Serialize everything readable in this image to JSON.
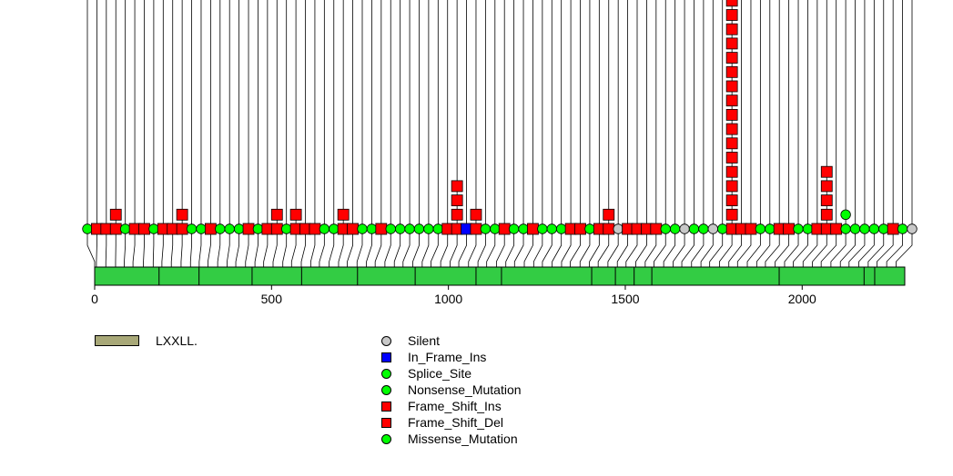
{
  "chart_data": {
    "type": "lollipop",
    "title": "",
    "xlabel": "",
    "ylabel": "",
    "protein_length": 2290,
    "xlim": [
      0,
      2290
    ],
    "axis_ticks": [
      0,
      500,
      1000,
      1500,
      2000
    ],
    "axis_tick_labels": [
      "0",
      "500",
      "1000",
      "1500",
      "2000"
    ],
    "domains": [
      {
        "name": "LXXLL.",
        "color": "#a8a878",
        "motif_positions": [
          182,
          295,
          445,
          585,
          743,
          906,
          1078,
          1150,
          1405,
          1472,
          1525,
          1575,
          1935,
          2175,
          2205
        ]
      }
    ],
    "mutation_types": [
      {
        "name": "Silent",
        "color": "#c8c8c8",
        "shape": "circle"
      },
      {
        "name": "In_Frame_Ins",
        "color": "#0000ff",
        "shape": "square"
      },
      {
        "name": "Splice_Site",
        "color": "#00ff00",
        "shape": "circle"
      },
      {
        "name": "Nonsense_Mutation",
        "color": "#00ff00",
        "shape": "circle"
      },
      {
        "name": "Frame_Shift_Ins",
        "color": "#ff0000",
        "shape": "square"
      },
      {
        "name": "Frame_Shift_Del",
        "color": "#ff0000",
        "shape": "square"
      },
      {
        "name": "Missense_Mutation",
        "color": "#00ff00",
        "shape": "circle"
      }
    ],
    "mutations": [
      {
        "pos": -22,
        "type": "Missense_Mutation",
        "count": 1
      },
      {
        "pos": 5,
        "type": "Frame_Shift_Del",
        "count": 1
      },
      {
        "pos": 32,
        "type": "Frame_Shift_Del",
        "count": 1
      },
      {
        "pos": 60,
        "type": "Frame_Shift_Del",
        "count": 2
      },
      {
        "pos": 85,
        "type": "Missense_Mutation",
        "count": 1
      },
      {
        "pos": 110,
        "type": "Frame_Shift_Del",
        "count": 1
      },
      {
        "pos": 140,
        "type": "Frame_Shift_Del",
        "count": 1
      },
      {
        "pos": 168,
        "type": "Missense_Mutation",
        "count": 1
      },
      {
        "pos": 193,
        "type": "Frame_Shift_Del",
        "count": 1
      },
      {
        "pos": 220,
        "type": "Frame_Shift_Del",
        "count": 1
      },
      {
        "pos": 248,
        "type": "Frame_Shift_Del",
        "count": 2
      },
      {
        "pos": 275,
        "type": "Missense_Mutation",
        "count": 1
      },
      {
        "pos": 300,
        "type": "Missense_Mutation",
        "count": 1
      },
      {
        "pos": 325,
        "type": "Frame_Shift_Del",
        "count": 1
      },
      {
        "pos": 353,
        "type": "Missense_Mutation",
        "count": 1
      },
      {
        "pos": 380,
        "type": "Missense_Mutation",
        "count": 1
      },
      {
        "pos": 405,
        "type": "Missense_Mutation",
        "count": 1
      },
      {
        "pos": 433,
        "type": "Frame_Shift_Del",
        "count": 1
      },
      {
        "pos": 460,
        "type": "Missense_Mutation",
        "count": 1
      },
      {
        "pos": 485,
        "type": "Frame_Shift_Del",
        "count": 1
      },
      {
        "pos": 512,
        "type": "Frame_Shift_Del",
        "count": 2
      },
      {
        "pos": 540,
        "type": "Missense_Mutation",
        "count": 1
      },
      {
        "pos": 565,
        "type": "Frame_Shift_Del",
        "count": 2
      },
      {
        "pos": 593,
        "type": "Frame_Shift_Del",
        "count": 1
      },
      {
        "pos": 620,
        "type": "Frame_Shift_Del",
        "count": 1
      },
      {
        "pos": 645,
        "type": "Missense_Mutation",
        "count": 1
      },
      {
        "pos": 673,
        "type": "Missense_Mutation",
        "count": 1
      },
      {
        "pos": 700,
        "type": "Frame_Shift_Del",
        "count": 2
      },
      {
        "pos": 725,
        "type": "Frame_Shift_Del",
        "count": 1
      },
      {
        "pos": 753,
        "type": "Missense_Mutation",
        "count": 1
      },
      {
        "pos": 780,
        "type": "Missense_Mutation",
        "count": 1
      },
      {
        "pos": 805,
        "type": "Frame_Shift_Del",
        "count": 1
      },
      {
        "pos": 833,
        "type": "Missense_Mutation",
        "count": 1
      },
      {
        "pos": 860,
        "type": "Missense_Mutation",
        "count": 1
      },
      {
        "pos": 885,
        "type": "Missense_Mutation",
        "count": 1
      },
      {
        "pos": 913,
        "type": "Missense_Mutation",
        "count": 1
      },
      {
        "pos": 940,
        "type": "Missense_Mutation",
        "count": 1
      },
      {
        "pos": 965,
        "type": "Missense_Mutation",
        "count": 1
      },
      {
        "pos": 993,
        "type": "Frame_Shift_Del",
        "count": 1
      },
      {
        "pos": 1020,
        "type": "Frame_Shift_Del",
        "count": 4
      },
      {
        "pos": 1045,
        "type": "In_Frame_Ins",
        "count": 1
      },
      {
        "pos": 1073,
        "type": "Frame_Shift_Del",
        "count": 2
      },
      {
        "pos": 1100,
        "type": "Missense_Mutation",
        "count": 1
      },
      {
        "pos": 1125,
        "type": "Missense_Mutation",
        "count": 1
      },
      {
        "pos": 1153,
        "type": "Frame_Shift_Del",
        "count": 1
      },
      {
        "pos": 1180,
        "type": "Missense_Mutation",
        "count": 1
      },
      {
        "pos": 1205,
        "type": "Missense_Mutation",
        "count": 1
      },
      {
        "pos": 1233,
        "type": "Frame_Shift_Del",
        "count": 1
      },
      {
        "pos": 1260,
        "type": "Missense_Mutation",
        "count": 1
      },
      {
        "pos": 1285,
        "type": "Missense_Mutation",
        "count": 1
      },
      {
        "pos": 1313,
        "type": "Missense_Mutation",
        "count": 1
      },
      {
        "pos": 1340,
        "type": "Frame_Shift_Del",
        "count": 1
      },
      {
        "pos": 1365,
        "type": "Frame_Shift_Del",
        "count": 1
      },
      {
        "pos": 1393,
        "type": "Missense_Mutation",
        "count": 1
      },
      {
        "pos": 1420,
        "type": "Frame_Shift_Del",
        "count": 1
      },
      {
        "pos": 1445,
        "type": "Frame_Shift_Del",
        "count": 2
      },
      {
        "pos": 1473,
        "type": "Silent",
        "count": 1
      },
      {
        "pos": 1500,
        "type": "Frame_Shift_Del",
        "count": 1
      },
      {
        "pos": 1525,
        "type": "Frame_Shift_Del",
        "count": 1
      },
      {
        "pos": 1553,
        "type": "Frame_Shift_Del",
        "count": 1
      },
      {
        "pos": 1580,
        "type": "Frame_Shift_Del",
        "count": 1
      },
      {
        "pos": 1605,
        "type": "Missense_Mutation",
        "count": 1
      },
      {
        "pos": 1633,
        "type": "Missense_Mutation",
        "count": 1
      },
      {
        "pos": 1660,
        "type": "Silent",
        "count": 1
      },
      {
        "pos": 1685,
        "type": "Missense_Mutation",
        "count": 1
      },
      {
        "pos": 1713,
        "type": "Missense_Mutation",
        "count": 1
      },
      {
        "pos": 1740,
        "type": "Silent",
        "count": 1
      },
      {
        "pos": 1765,
        "type": "Missense_Mutation",
        "count": 1
      },
      {
        "pos": 1793,
        "type": "Frame_Shift_Del",
        "count": 17
      },
      {
        "pos": 1820,
        "type": "Frame_Shift_Del",
        "count": 1
      },
      {
        "pos": 1845,
        "type": "Frame_Shift_Del",
        "count": 1
      },
      {
        "pos": 1873,
        "type": "Missense_Mutation",
        "count": 1
      },
      {
        "pos": 1900,
        "type": "Missense_Mutation",
        "count": 1
      },
      {
        "pos": 1925,
        "type": "Frame_Shift_Del",
        "count": 1
      },
      {
        "pos": 1953,
        "type": "Frame_Shift_Del",
        "count": 1
      },
      {
        "pos": 1980,
        "type": "Missense_Mutation",
        "count": 1
      },
      {
        "pos": 2005,
        "type": "Missense_Mutation",
        "count": 1
      },
      {
        "pos": 2033,
        "type": "Frame_Shift_Del",
        "count": 1
      },
      {
        "pos": 2060,
        "type": "Frame_Shift_Del",
        "count": 5
      },
      {
        "pos": 2085,
        "type": "Frame_Shift_Del",
        "count": 1
      },
      {
        "pos": 2113,
        "type": "Missense_Mutation",
        "count": 2
      },
      {
        "pos": 2140,
        "type": "Missense_Mutation",
        "count": 1
      },
      {
        "pos": 2165,
        "type": "Missense_Mutation",
        "count": 1
      },
      {
        "pos": 2193,
        "type": "Missense_Mutation",
        "count": 1
      },
      {
        "pos": 2220,
        "type": "Missense_Mutation",
        "count": 1
      },
      {
        "pos": 2245,
        "type": "Frame_Shift_Del",
        "count": 1
      },
      {
        "pos": 2273,
        "type": "Missense_Mutation",
        "count": 1
      },
      {
        "pos": 2300,
        "type": "Silent",
        "count": 1
      }
    ]
  },
  "legend": {
    "domains": [
      {
        "label": "LXXLL.",
        "color": "#a8a878"
      }
    ],
    "mutation_types": [
      {
        "label": "Silent",
        "color": "#c8c8c8",
        "shape": "circle"
      },
      {
        "label": "In_Frame_Ins",
        "color": "#0000ff",
        "shape": "square"
      },
      {
        "label": "Splice_Site",
        "color": "#00ff00",
        "shape": "circle"
      },
      {
        "label": "Nonsense_Mutation",
        "color": "#00ff00",
        "shape": "circle"
      },
      {
        "label": "Frame_Shift_Ins",
        "color": "#ff0000",
        "shape": "square"
      },
      {
        "label": "Frame_Shift_Del",
        "color": "#ff0000",
        "shape": "square"
      },
      {
        "label": "Missense_Mutation",
        "color": "#00ff00",
        "shape": "circle"
      }
    ]
  },
  "colors": {
    "protein_bar": "#33cc44",
    "line": "#000000"
  }
}
